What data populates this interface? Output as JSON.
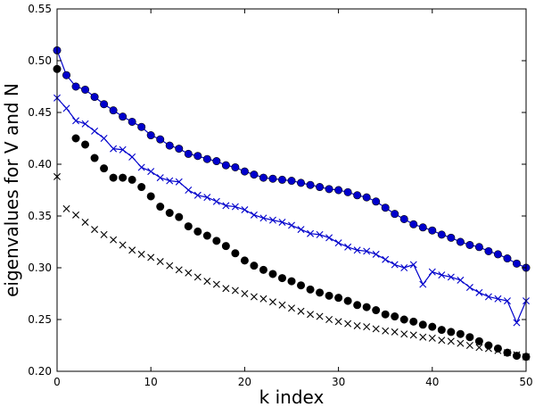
{
  "chart_data": {
    "type": "line",
    "title": "",
    "xlabel": "k index",
    "ylabel": "eigenvalues for V and N",
    "xlim": [
      0,
      50
    ],
    "ylim": [
      0.2,
      0.55
    ],
    "xticks": [
      "0",
      "10",
      "20",
      "30",
      "40",
      "50"
    ],
    "yticks": [
      "0.20",
      "0.25",
      "0.30",
      "0.35",
      "0.40",
      "0.45",
      "0.50",
      "0.55"
    ],
    "grid": false,
    "x": [
      0,
      1,
      2,
      3,
      4,
      5,
      6,
      7,
      8,
      9,
      10,
      11,
      12,
      13,
      14,
      15,
      16,
      17,
      18,
      19,
      20,
      21,
      22,
      23,
      24,
      25,
      26,
      27,
      28,
      29,
      30,
      31,
      32,
      33,
      34,
      35,
      36,
      37,
      38,
      39,
      40,
      41,
      42,
      43,
      44,
      45,
      46,
      47,
      48,
      49,
      50
    ],
    "series": [
      {
        "color": "#0000cc",
        "marker": "circle",
        "line": true,
        "values": [
          0.51,
          0.486,
          0.475,
          0.472,
          0.465,
          0.458,
          0.452,
          0.446,
          0.441,
          0.436,
          0.428,
          0.424,
          0.418,
          0.415,
          0.41,
          0.408,
          0.405,
          0.403,
          0.399,
          0.397,
          0.393,
          0.39,
          0.387,
          0.386,
          0.385,
          0.384,
          0.382,
          0.38,
          0.378,
          0.376,
          0.375,
          0.373,
          0.37,
          0.368,
          0.364,
          0.358,
          0.352,
          0.347,
          0.342,
          0.339,
          0.336,
          0.332,
          0.329,
          0.325,
          0.322,
          0.32,
          0.316,
          0.313,
          0.309,
          0.304,
          0.3
        ]
      },
      {
        "color": "#0000cc",
        "marker": "x",
        "line": true,
        "values": [
          0.464,
          0.454,
          0.442,
          0.439,
          0.432,
          0.425,
          0.415,
          0.414,
          0.407,
          0.397,
          0.393,
          0.387,
          0.384,
          0.383,
          0.375,
          0.37,
          0.368,
          0.364,
          0.36,
          0.359,
          0.356,
          0.351,
          0.348,
          0.346,
          0.344,
          0.341,
          0.337,
          0.333,
          0.332,
          0.329,
          0.324,
          0.32,
          0.317,
          0.316,
          0.313,
          0.308,
          0.303,
          0.3,
          0.303,
          0.284,
          0.296,
          0.293,
          0.291,
          0.288,
          0.281,
          0.276,
          0.272,
          0.27,
          0.268,
          0.247,
          0.268
        ]
      },
      {
        "color": "#000000",
        "marker": "circle",
        "line": false,
        "values": [
          0.492,
          null,
          0.425,
          0.419,
          0.406,
          0.396,
          0.387,
          0.387,
          0.385,
          0.378,
          0.369,
          0.359,
          0.353,
          0.349,
          0.34,
          0.335,
          0.331,
          0.326,
          0.321,
          0.314,
          0.307,
          0.302,
          0.298,
          0.294,
          0.29,
          0.287,
          0.283,
          0.279,
          0.276,
          0.273,
          0.271,
          0.268,
          0.264,
          0.262,
          0.259,
          0.255,
          0.253,
          0.25,
          0.248,
          0.245,
          0.243,
          0.24,
          0.238,
          0.236,
          0.233,
          0.229,
          0.225,
          0.222,
          0.218,
          0.215,
          0.214
        ]
      },
      {
        "color": "#000000",
        "marker": "x",
        "line": false,
        "values": [
          0.388,
          0.357,
          0.351,
          0.344,
          0.337,
          0.332,
          0.327,
          0.322,
          0.317,
          0.313,
          0.31,
          0.306,
          0.302,
          0.298,
          0.295,
          0.291,
          0.287,
          0.284,
          0.28,
          0.278,
          0.275,
          0.272,
          0.27,
          0.267,
          0.264,
          0.261,
          0.258,
          0.255,
          0.253,
          0.25,
          0.248,
          0.246,
          0.244,
          0.243,
          0.241,
          0.239,
          0.238,
          0.236,
          0.235,
          0.233,
          0.232,
          0.23,
          0.229,
          0.227,
          0.225,
          0.223,
          0.222,
          0.22,
          0.218,
          0.216,
          0.214
        ]
      }
    ]
  }
}
